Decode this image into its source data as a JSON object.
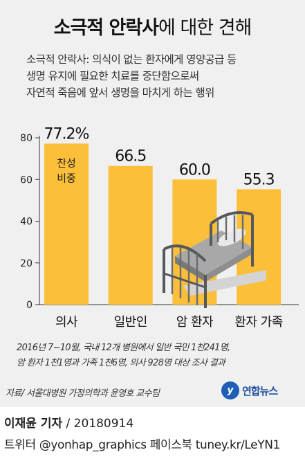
{
  "title": {
    "bold": "소극적 안락사",
    "rest": "에 대한 견해"
  },
  "description": [
    "소극적 안락사:  의식이 없는 환자에게 영양공급 등",
    "생명 유지에 필요한 치료를 중단함으로써",
    "자연적 죽음에 앞서 생명을 마치게 하는 행위"
  ],
  "chart_data": {
    "type": "bar",
    "categories": [
      "의사",
      "일반인",
      "암 환자",
      "환자 가족"
    ],
    "values": [
      77.2,
      66.5,
      60.0,
      55.3
    ],
    "value_labels": [
      "77.2%",
      "66.5",
      "60.0",
      "55.3"
    ],
    "inner_label": [
      "찬성",
      "비중"
    ],
    "yticks": [
      0,
      20,
      40,
      60,
      80
    ],
    "ylim": [
      0,
      80
    ],
    "bar_color": "#fbbf3a",
    "grid": false
  },
  "note": [
    "2016년 7~10월, 국내 12개 병원에서 일반 국민 1천241명,",
    "암 환자 1천1명과 가족 1천6명, 의사 928명 대상 조사 결과"
  ],
  "source": "자료/ 서울대병원 가정의학과 윤영호 교수팀",
  "logo": {
    "mark": "y",
    "text": "연합뉴스",
    "icon": "yonhap-logo-icon",
    "color": "#1e5fb5"
  },
  "footer": {
    "author": "이재윤 기자",
    "date": " / 20180914",
    "social": "트위터 @yonhap_graphics  페이스북 tuney.kr/LeYN1"
  }
}
